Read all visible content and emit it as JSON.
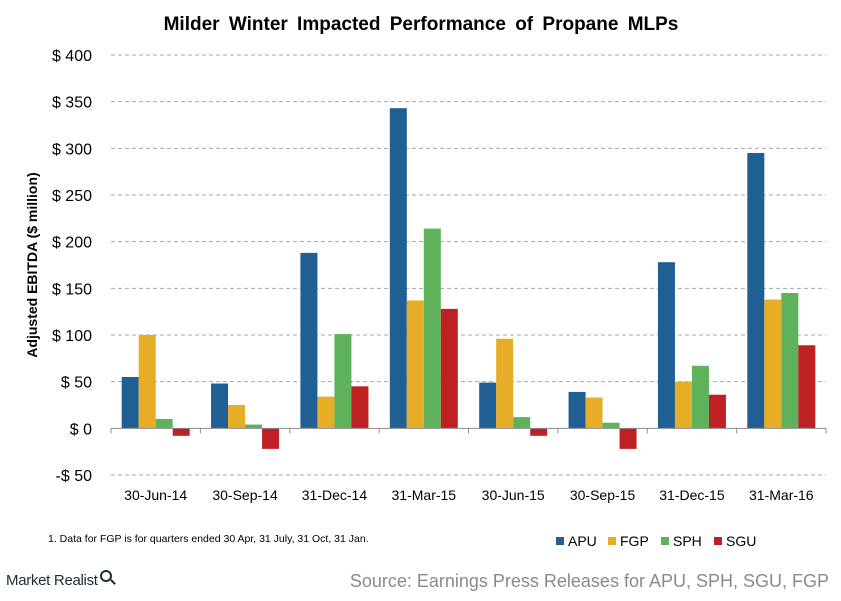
{
  "chart_data": {
    "type": "bar",
    "title": "Milder Winter Impacted Performance of Propane MLPs",
    "ylabel": "Adjusted EBITDA ($ million)",
    "xlabel": "",
    "ylim": [
      -50,
      400
    ],
    "yticks": [
      400,
      350,
      300,
      250,
      200,
      150,
      100,
      50,
      0,
      -50
    ],
    "ytick_labels": [
      "$ 400",
      "$ 350",
      "$ 300",
      "$ 250",
      "$ 200",
      "$ 150",
      "$ 100",
      "$ 50",
      "$ 0",
      "-$ 50"
    ],
    "grid": true,
    "legend_position": "bottom-right",
    "categories": [
      "30-Jun-14",
      "30-Sep-14",
      "31-Dec-14",
      "31-Mar-15",
      "30-Jun-15",
      "30-Sep-15",
      "31-Dec-15",
      "31-Mar-16"
    ],
    "series": [
      {
        "name": "APU",
        "color": "#1f5f93",
        "values": [
          55,
          48,
          188,
          343,
          49,
          39,
          178,
          295
        ]
      },
      {
        "name": "FGP",
        "color": "#e7ad27",
        "values": [
          100,
          25,
          34,
          137,
          96,
          33,
          50,
          138
        ]
      },
      {
        "name": "SPH",
        "color": "#5eb25c",
        "values": [
          10,
          4,
          101,
          214,
          12,
          6,
          67,
          145
        ]
      },
      {
        "name": "SGU",
        "color": "#be2024",
        "values": [
          -8,
          -22,
          45,
          128,
          -8,
          -22,
          36,
          89
        ]
      }
    ]
  },
  "footnote": "1. Data for FGP is for quarters ended 30 Apr, 31 July, 31 Oct, 31 Jan.",
  "brand": "Market Realist",
  "source": "Source: Earnings Press Releases for APU, SPH, SGU, FGP"
}
